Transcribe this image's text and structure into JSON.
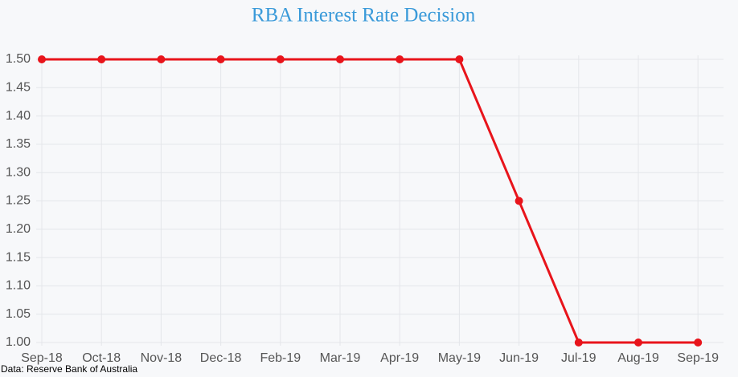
{
  "chart_data": {
    "type": "line",
    "title": "RBA Interest Rate Decision",
    "categories": [
      "Sep-18",
      "Oct-18",
      "Nov-18",
      "Dec-18",
      "Feb-19",
      "Mar-19",
      "Apr-19",
      "May-19",
      "Jun-19",
      "Jul-19",
      "Aug-19",
      "Sep-19"
    ],
    "values": [
      1.5,
      1.5,
      1.5,
      1.5,
      1.5,
      1.5,
      1.5,
      1.5,
      1.25,
      1,
      1,
      1
    ],
    "color": "#e8141b",
    "ylim": [
      1,
      1.5
    ],
    "yticks": [
      {
        "value": 1,
        "label": "1.00"
      },
      {
        "value": 1.05,
        "label": "1.05"
      },
      {
        "value": 1.1,
        "label": "1.10"
      },
      {
        "value": 1.15,
        "label": "1.15"
      },
      {
        "value": 1.2,
        "label": "1.20"
      },
      {
        "value": 1.25,
        "label": "1.25"
      },
      {
        "value": 1.3,
        "label": "1.30"
      },
      {
        "value": 1.35,
        "label": "1.35"
      },
      {
        "value": 1.4,
        "label": "1.40"
      },
      {
        "value": 1.45,
        "label": "1.45"
      },
      {
        "value": 1.5,
        "label": "1.50"
      }
    ],
    "grid": true,
    "source": "Data: Reserve Bank of Australia"
  }
}
